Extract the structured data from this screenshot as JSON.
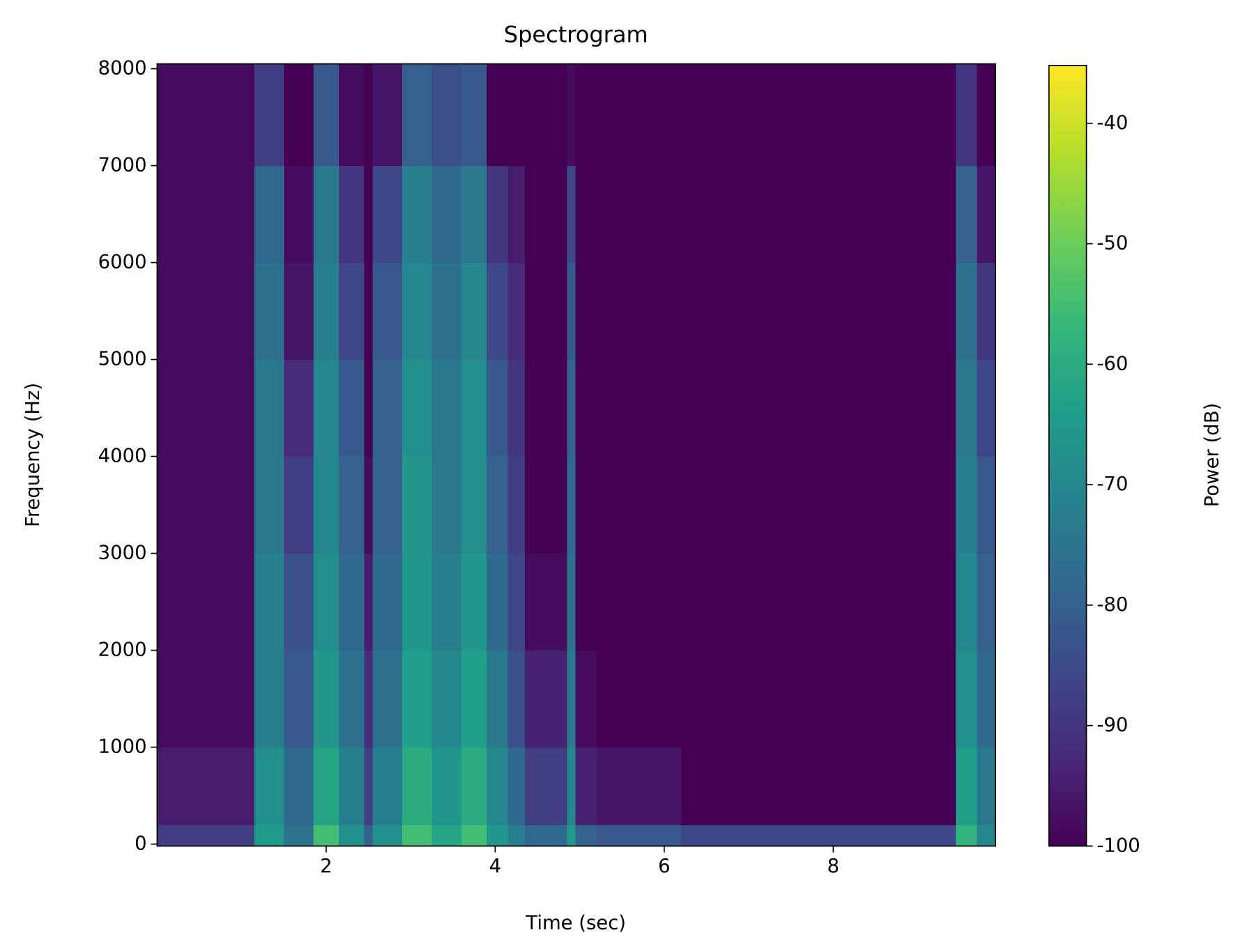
{
  "chart_data": {
    "type": "heatmap",
    "title": "Spectrogram",
    "x_label": "Time (sec)",
    "y_label": "Frequency (Hz)",
    "colorbar_label": "Power (dB)",
    "xlim": [
      0,
      9.92
    ],
    "ylim": [
      -20,
      8050
    ],
    "xticks": [
      2,
      4,
      6,
      8
    ],
    "yticks": [
      0,
      1000,
      2000,
      3000,
      4000,
      5000,
      6000,
      7000,
      8000
    ],
    "clim": [
      -100,
      -35.2
    ],
    "cticks": [
      -40,
      -50,
      -60,
      -70,
      -80,
      -90,
      -100
    ],
    "colormap": [
      "#440154",
      "#482878",
      "#3e4989",
      "#31688e",
      "#26828e",
      "#1f9e89",
      "#35b779",
      "#6ece58",
      "#b5de2b",
      "#fde725"
    ],
    "x_edges": [
      0,
      1.15,
      1.5,
      1.85,
      2.15,
      2.45,
      2.55,
      2.9,
      3.25,
      3.6,
      3.9,
      4.15,
      4.35,
      4.85,
      4.95,
      5.2,
      6.2,
      9.45,
      9.7,
      9.92
    ],
    "y_edges": [
      -20,
      200,
      1000,
      2000,
      3000,
      4000,
      5000,
      6000,
      7000,
      8050
    ],
    "z": [
      [
        -88,
        -65,
        -75,
        -55,
        -68,
        -80,
        -68,
        -55,
        -62,
        -55,
        -66,
        -72,
        -78,
        -65,
        -80,
        -82,
        -86,
        -58,
        -70
      ],
      [
        -95,
        -68,
        -78,
        -62,
        -72,
        -88,
        -72,
        -60,
        -66,
        -60,
        -70,
        -78,
        -88,
        -70,
        -94,
        -96,
        -100,
        -64,
        -74
      ],
      [
        -98,
        -72,
        -82,
        -66,
        -76,
        -92,
        -76,
        -64,
        -70,
        -64,
        -74,
        -84,
        -94,
        -74,
        -98,
        -100,
        -100,
        -68,
        -78
      ],
      [
        -98,
        -72,
        -84,
        -68,
        -78,
        -95,
        -78,
        -66,
        -72,
        -66,
        -78,
        -86,
        -98,
        -76,
        -100,
        -100,
        -100,
        -70,
        -80
      ],
      [
        -98,
        -74,
        -88,
        -70,
        -80,
        -98,
        -80,
        -66,
        -74,
        -68,
        -80,
        -88,
        -100,
        -78,
        -100,
        -100,
        -100,
        -72,
        -82
      ],
      [
        -98,
        -74,
        -92,
        -70,
        -82,
        -100,
        -80,
        -68,
        -74,
        -68,
        -82,
        -90,
        -100,
        -80,
        -100,
        -100,
        -100,
        -74,
        -86
      ],
      [
        -98,
        -76,
        -96,
        -72,
        -86,
        -100,
        -82,
        -70,
        -76,
        -70,
        -86,
        -92,
        -100,
        -82,
        -100,
        -100,
        -100,
        -76,
        -90
      ],
      [
        -98,
        -78,
        -98,
        -74,
        -90,
        -100,
        -86,
        -72,
        -78,
        -74,
        -90,
        -95,
        -100,
        -86,
        -100,
        -100,
        -100,
        -80,
        -96
      ],
      [
        -98,
        -88,
        -100,
        -82,
        -98,
        -100,
        -96,
        -80,
        -84,
        -82,
        -100,
        -100,
        -100,
        -98,
        -100,
        -100,
        -100,
        -90,
        -100
      ]
    ]
  }
}
